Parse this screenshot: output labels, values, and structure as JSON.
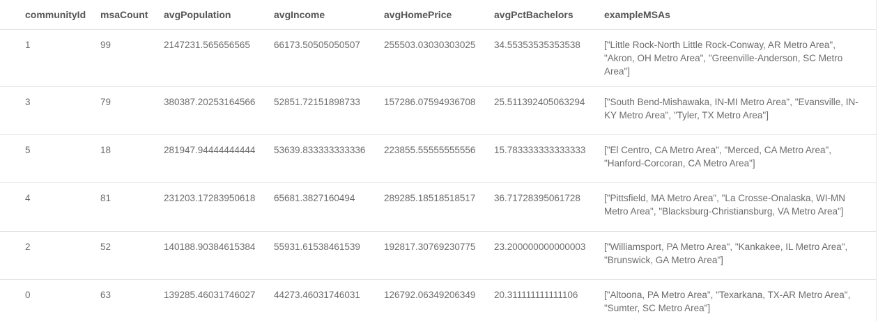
{
  "columns": [
    "communityId",
    "msaCount",
    "avgPopulation",
    "avgIncome",
    "avgHomePrice",
    "avgPctBachelors",
    "exampleMSAs"
  ],
  "rows": [
    [
      "1",
      "99",
      "2147231.565656565",
      "66173.50505050507",
      "255503.03030303025",
      "34.55353535353538",
      "[\"Little Rock-North Little Rock-Conway, AR Metro Area\", \"Akron, OH Metro Area\", \"Greenville-Anderson, SC Metro Area\"]"
    ],
    [
      "3",
      "79",
      "380387.20253164566",
      "52851.72151898733",
      "157286.07594936708",
      "25.511392405063294",
      "[\"South Bend-Mishawaka, IN-MI Metro Area\", \"Evansville, IN-KY Metro Area\", \"Tyler, TX Metro Area\"]"
    ],
    [
      "5",
      "18",
      "281947.94444444444",
      "53639.833333333336",
      "223855.55555555556",
      "15.783333333333333",
      "[\"El Centro, CA Metro Area\", \"Merced, CA Metro Area\", \"Hanford-Corcoran, CA Metro Area\"]"
    ],
    [
      "4",
      "81",
      "231203.17283950618",
      "65681.3827160494",
      "289285.18518518517",
      "36.71728395061728",
      "[\"Pittsfield, MA Metro Area\", \"La Crosse-Onalaska, WI-MN Metro Area\", \"Blacksburg-Christiansburg, VA Metro Area\"]"
    ],
    [
      "2",
      "52",
      "140188.90384615384",
      "55931.61538461539",
      "192817.30769230775",
      "23.200000000000003",
      "[\"Williamsport, PA Metro Area\", \"Kankakee, IL Metro Area\", \"Brunswick, GA Metro Area\"]"
    ],
    [
      "0",
      "63",
      "139285.46031746027",
      "44273.46031746031",
      "126792.06349206349",
      "20.311111111111106",
      "[\"Altoona, PA Metro Area\", \"Texarkana, TX-AR Metro Area\", \"Sumter, SC Metro Area\"]"
    ]
  ]
}
